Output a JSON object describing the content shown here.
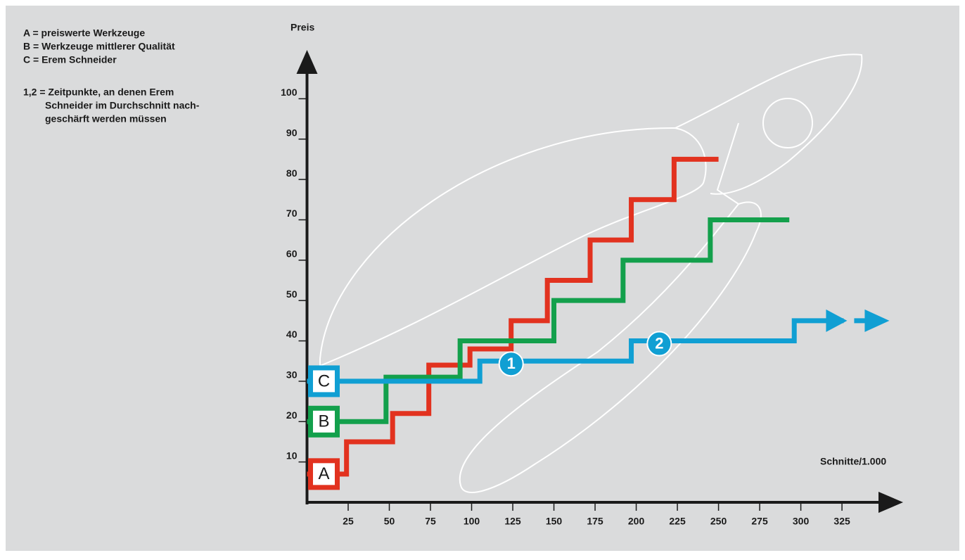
{
  "chart_data": {
    "type": "step",
    "notes": [
      "A = preiswerte Werkzeuge",
      "B = Werkzeuge mittlerer Qualität",
      "C = Erem Schneider",
      "1,2 = Zeitpunkte, an denen Erem",
      "Schneider im Durchschnitt nach-",
      "geschärft werden müssen"
    ],
    "y_label": "Preis",
    "x_label": "Schnitte/1.000",
    "xlim": [
      0,
      360
    ],
    "ylim": [
      0,
      110
    ],
    "xticks": [
      25,
      50,
      75,
      100,
      125,
      150,
      175,
      200,
      225,
      250,
      275,
      300,
      325
    ],
    "yticks": [
      10,
      20,
      30,
      40,
      50,
      60,
      70,
      80,
      90,
      100
    ],
    "series": [
      {
        "name": "A",
        "color": "#e2321f",
        "x": [
          0,
          24,
          52,
          74,
          99,
          124,
          146,
          172,
          197,
          223,
          250
        ],
        "values": [
          7,
          15,
          22,
          34,
          38,
          45,
          55,
          65,
          75,
          85,
          85
        ]
      },
      {
        "name": "B",
        "color": "#13a04c",
        "x": [
          0,
          48,
          93,
          150,
          192,
          245,
          293
        ],
        "values": [
          20,
          31,
          40,
          50,
          60,
          70,
          70
        ]
      },
      {
        "name": "C",
        "color": "#109fd3",
        "x": [
          0,
          105,
          197,
          296,
          326
        ],
        "values": [
          30,
          35,
          40,
          45,
          45
        ]
      }
    ],
    "annotations": [
      {
        "text": "1",
        "x": 124
      },
      {
        "text": "2",
        "x": 214
      }
    ]
  }
}
